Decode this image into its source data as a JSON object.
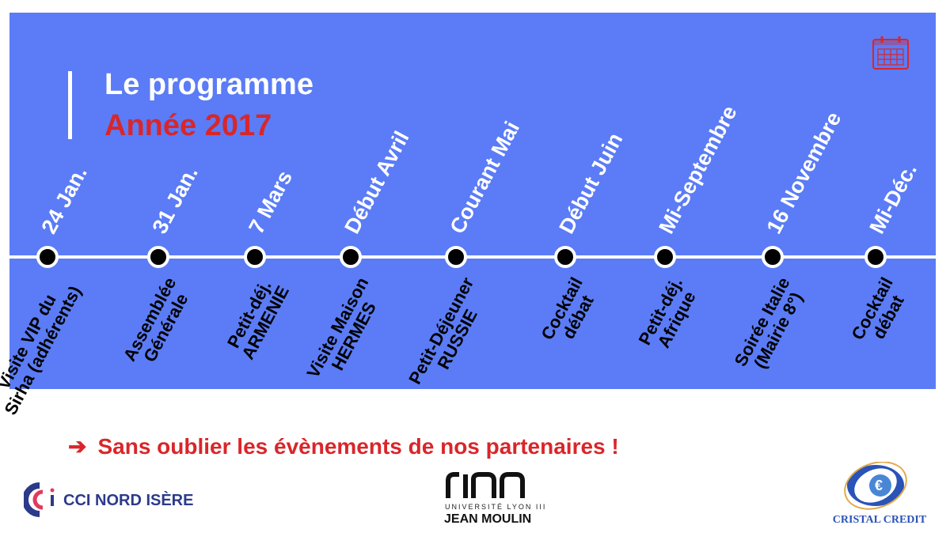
{
  "header": {
    "title_line1": "Le programme",
    "title_line2": "Année 2017"
  },
  "icons": {
    "calendar": "calendar-icon",
    "arrow": "right-arrow-icon"
  },
  "colors": {
    "panel": "#5b7cf6",
    "accent_red": "#d9262a",
    "line": "#ffffff",
    "dot": "#000000"
  },
  "timeline": [
    {
      "date": "24 Jan.",
      "event": [
        "Visite VIP du",
        "Sirha (adhérents)"
      ]
    },
    {
      "date": "31 Jan.",
      "event": [
        "Assemblée",
        "Générale"
      ]
    },
    {
      "date": "7 Mars",
      "event": [
        "Petit-déj.",
        "ARMENIE"
      ]
    },
    {
      "date": "Début Avril",
      "event": [
        "Visite Maison",
        "HERMES"
      ]
    },
    {
      "date": "Courant Mai",
      "event": [
        "Petit-Déjeuner",
        "RUSSIE"
      ]
    },
    {
      "date": "Début Juin",
      "event": [
        "Cocktail",
        "débat"
      ]
    },
    {
      "date": "Mi-Septembre",
      "event": [
        "Petit-déj.",
        "Afrique"
      ]
    },
    {
      "date": "16 Novembre",
      "event": [
        "Soirée Italie",
        "(Mairie 8°)"
      ]
    },
    {
      "date": "Mi-Déc.",
      "event": [
        "Cocktail",
        "débat"
      ]
    }
  ],
  "note": {
    "arrow": "➔",
    "text": "Sans oublier les évènements de nos partenaires !"
  },
  "logos": {
    "cci": "CCI NORD ISÈRE",
    "jm_small": "UNIVERSITÉ LYON III",
    "jm_big": "JEAN MOULIN",
    "cristal": "CRISTAL CREDIT"
  }
}
